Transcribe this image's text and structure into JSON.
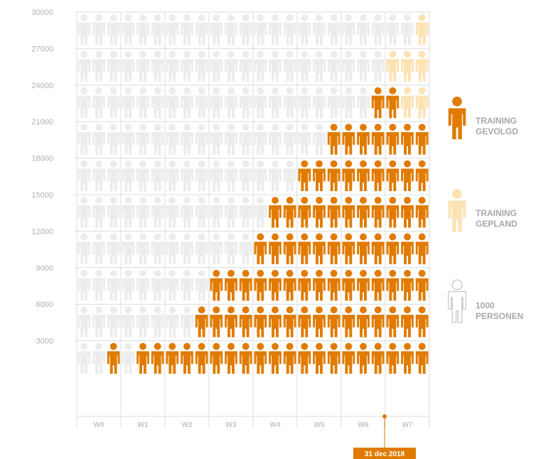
{
  "chart_data": {
    "type": "isotype",
    "categories": [
      "W0",
      "W1",
      "W2",
      "W3",
      "W4",
      "W5",
      "W6",
      "W7"
    ],
    "series": [
      {
        "name": "TRAINING GEVOLGD",
        "color": "#e07b00",
        "values": [
          [
            0,
            0,
            3000
          ],
          [
            0,
            3000,
            3000
          ],
          [
            3000,
            3000,
            6000
          ],
          [
            9000,
            9000,
            9000
          ],
          [
            12000,
            15000,
            15000
          ],
          [
            18000,
            18000,
            21000
          ],
          [
            21000,
            21000,
            24000
          ],
          [
            24000,
            21000,
            21000
          ]
        ]
      },
      {
        "name": "TRAINING GEPLAND",
        "color": "#fde2b4",
        "values": [
          [
            0,
            0,
            0
          ],
          [
            0,
            0,
            0
          ],
          [
            0,
            0,
            0
          ],
          [
            0,
            0,
            0
          ],
          [
            0,
            0,
            0
          ],
          [
            0,
            0,
            0
          ],
          [
            0,
            0,
            0
          ],
          [
            3000,
            6000,
            9000
          ]
        ]
      }
    ],
    "unit_label": "1000 PERSONEN",
    "background_color": "#ececec",
    "ylim": [
      0,
      30000
    ],
    "yticks": [
      3000,
      6000,
      9000,
      12000,
      15000,
      18000,
      21000,
      24000,
      27000,
      30000
    ],
    "annotation": "31 dec 2018"
  }
}
